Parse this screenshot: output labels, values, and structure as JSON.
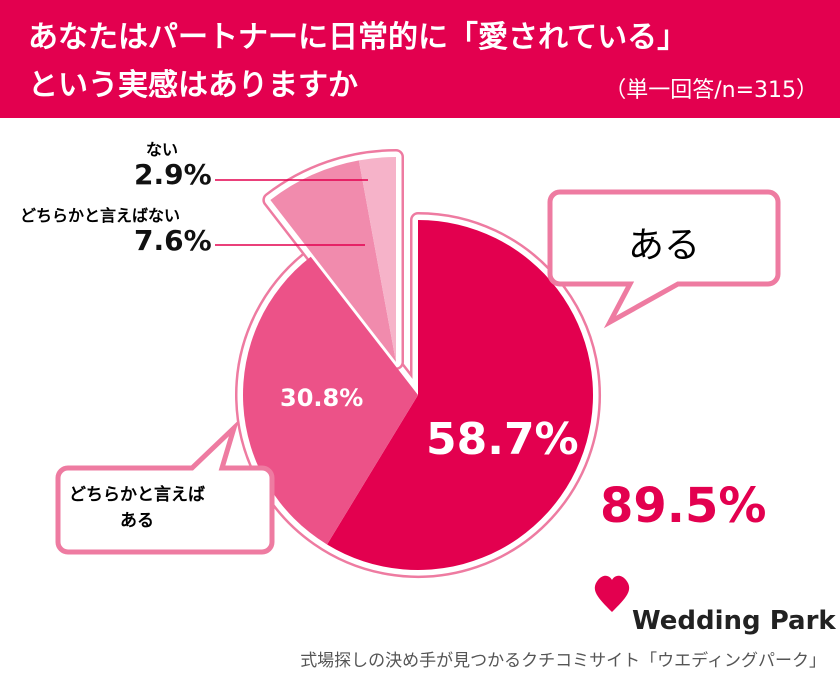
{
  "chart_data": {
    "type": "pie",
    "title_lines": [
      "あなたはパートナーに日常的に「愛されている」",
      "という実感はありますか"
    ],
    "subtitle": "（単一回答/n=315）",
    "categories": [
      "ある",
      "どちらかと言えばある",
      "どちらかと言えばない",
      "ない"
    ],
    "values": [
      58.7,
      30.8,
      7.6,
      2.9
    ],
    "value_labels": [
      "58.7%",
      "30.8%",
      "7.6%",
      "2.9%"
    ],
    "colors": [
      "#e3004f",
      "#ec5288",
      "#f18bad",
      "#f6b3c9"
    ],
    "annotation": "89.5%",
    "brand": "Wedding Park",
    "tagline": "式場探しの決め手が見つかるクチコミサイト「ウエディングパーク」"
  }
}
